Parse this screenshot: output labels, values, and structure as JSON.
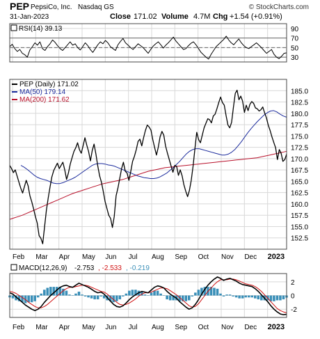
{
  "header": {
    "ticker": "PEP",
    "company": "PepsiCo, Inc.",
    "exchange": "Nasdaq GS",
    "date": "31-Jan-2023",
    "close_label": "Close",
    "close_value": "171.02",
    "volume_label": "Volume",
    "volume_value": "4.7M",
    "chg_label": "Chg",
    "chg_value": "+1.54 (+0.91%)",
    "watermark": "© StockCharts.com"
  },
  "colors": {
    "price": "#000000",
    "ma50": "#1a2a9c",
    "ma200": "#b8102a",
    "macd": "#000000",
    "signal": "#d01010",
    "histogram": "#3a8fb8",
    "grid": "#d8d8d8"
  },
  "chart_data": [
    {
      "type": "line",
      "panel": "rsi",
      "legend": "RSI(14) 39.13",
      "ylim": [
        20,
        100
      ],
      "ticks": [
        30,
        50,
        70,
        90
      ],
      "reference_lines": [
        30,
        50,
        70
      ],
      "series": [
        {
          "name": "RSI(14)",
          "values": [
            52,
            57,
            48,
            42,
            46,
            38,
            35,
            30,
            45,
            52,
            60,
            55,
            62,
            48,
            44,
            52,
            58,
            66,
            61,
            54,
            48,
            44,
            50,
            56,
            62,
            55,
            58,
            50,
            45,
            52,
            60,
            54,
            46,
            40,
            48,
            56,
            62,
            58,
            65,
            60,
            52,
            48,
            44,
            56,
            63,
            69,
            60,
            55,
            50,
            46,
            52,
            58,
            54,
            50,
            44,
            38,
            46,
            53,
            58,
            62,
            56,
            49,
            55,
            60,
            66,
            72,
            64,
            58,
            52,
            46,
            48,
            54,
            59,
            62,
            56,
            48,
            40,
            35,
            30,
            26,
            36,
            44,
            52,
            57,
            62,
            67,
            74,
            66,
            60,
            56,
            62,
            68,
            60,
            54,
            50,
            48,
            52,
            56,
            60,
            55,
            50,
            44,
            38,
            42,
            46,
            36,
            30,
            27,
            32,
            38,
            39
          ]
        }
      ]
    },
    {
      "type": "line",
      "panel": "price",
      "ylim": [
        150,
        187.5
      ],
      "ticks": [
        152.5,
        155.0,
        157.5,
        160.0,
        162.5,
        165.0,
        167.5,
        170.0,
        172.5,
        175.0,
        177.5,
        180.0,
        182.5,
        185.0
      ],
      "x_labels": [
        "Feb",
        "Mar",
        "Apr",
        "May",
        "Jun",
        "Jul",
        "Aug",
        "Sep",
        "Oct",
        "Nov",
        "Dec",
        "2023"
      ],
      "series": [
        {
          "name": "PEP (Daily) 171.02",
          "values": [
            168.5,
            167.8,
            166.9,
            167.5,
            166.2,
            164.8,
            163.5,
            162.4,
            163.8,
            165.2,
            164.0,
            161.8,
            160.5,
            158.9,
            157.2,
            155.8,
            153.0,
            152.4,
            151.2,
            155.0,
            158.6,
            161.4,
            163.8,
            166.0,
            167.4,
            168.2,
            169.0,
            167.8,
            168.5,
            169.2,
            167.5,
            165.4,
            166.8,
            168.8,
            170.2,
            171.6,
            172.4,
            173.5,
            172.0,
            171.2,
            172.8,
            174.6,
            173.0,
            171.6,
            169.5,
            171.8,
            173.2,
            171.0,
            168.4,
            166.2,
            164.8,
            162.8,
            160.5,
            159.0,
            157.5,
            156.8,
            154.8,
            157.2,
            161.8,
            163.5,
            165.6,
            167.8,
            169.2,
            167.2,
            166.8,
            165.2,
            167.2,
            169.4,
            170.5,
            172.0,
            173.8,
            174.3,
            172.8,
            174.6,
            176.2,
            177.4,
            177.0,
            176.3,
            174.2,
            172.5,
            170.8,
            172.5,
            174.8,
            176.0,
            175.2,
            172.8,
            171.2,
            169.8,
            168.4,
            167.0,
            168.5,
            168.3,
            166.3,
            167.5,
            166.2,
            164.2,
            162.8,
            161.6,
            163.0,
            165.2,
            168.4,
            172.2,
            175.8,
            174.2,
            173.5,
            175.2,
            176.8,
            177.8,
            178.8,
            178.6,
            177.9,
            179.4,
            179.8,
            181.0,
            182.4,
            183.6,
            182.4,
            181.8,
            179.5,
            177.4,
            176.8,
            178.0,
            181.4,
            184.4,
            185.1,
            183.0,
            183.8,
            182.7,
            180.2,
            181.8,
            180.6,
            182.0,
            182.6,
            182.2,
            181.2,
            181.0,
            180.5,
            180.8,
            181.4,
            180.1,
            179.0,
            177.4,
            176.2,
            174.8,
            173.6,
            172.4,
            169.8,
            172.0,
            171.2,
            169.4,
            169.8,
            171.0
          ]
        },
        {
          "name": "MA(50) 179.14",
          "values": [
            168.5,
            168.1,
            167.6,
            167.0,
            166.4,
            165.9,
            165.6,
            165.4,
            165.2,
            164.9,
            164.6,
            164.5,
            164.5,
            164.7,
            165.0,
            165.3,
            165.6,
            166.0,
            166.5,
            167.0,
            167.5,
            168.0,
            168.5,
            168.8,
            168.9,
            168.9,
            168.8,
            168.6,
            168.5,
            168.3,
            168.0,
            167.7,
            167.4,
            167.1,
            166.8,
            166.5,
            166.2,
            166.0,
            165.8,
            165.7,
            165.6,
            165.6,
            165.7,
            166.0,
            166.4,
            166.8,
            167.4,
            168.0,
            168.7,
            169.4,
            170.2,
            171.0,
            171.6,
            172.0,
            172.2,
            172.2,
            172.0,
            171.8,
            171.6,
            171.4,
            171.2,
            171.0,
            170.8,
            170.8,
            171.0,
            171.4,
            172.0,
            172.8,
            173.7,
            174.7,
            175.7,
            176.6,
            177.4,
            178.2,
            178.9,
            179.6,
            180.1,
            180.5,
            180.6,
            180.3,
            179.8,
            179.4,
            179.14
          ]
        },
        {
          "name": "MA(200) 171.62",
          "values": [
            156.6,
            156.9,
            157.2,
            157.5,
            157.9,
            158.3,
            158.7,
            159.1,
            159.5,
            159.9,
            160.3,
            160.7,
            161.1,
            161.5,
            161.9,
            162.3,
            162.6,
            162.9,
            163.2,
            163.5,
            163.8,
            164.1,
            164.4,
            164.6,
            164.8,
            165.0,
            165.2,
            165.4,
            165.7,
            166.0,
            166.3,
            166.6,
            166.9,
            167.2,
            167.4,
            167.6,
            167.8,
            168.0,
            168.1,
            168.2,
            168.3,
            168.4,
            168.5,
            168.6,
            168.7,
            168.8,
            168.9,
            169.0,
            169.1,
            169.2,
            169.3,
            169.4,
            169.5,
            169.6,
            169.7,
            169.8,
            169.9,
            170.0,
            170.1,
            170.2,
            170.4,
            170.6,
            170.8,
            171.0,
            171.2,
            171.4,
            171.62
          ]
        }
      ]
    },
    {
      "type": "line",
      "panel": "macd",
      "legend_prefix": "MACD(12,26,9)",
      "legend_macd": "-2.753",
      "legend_signal": "-2.533",
      "legend_hist": "-0.219",
      "ylim": [
        -3.2,
        3.2
      ],
      "ticks": [
        -2,
        0,
        2
      ],
      "x_labels": [
        "Feb",
        "Mar",
        "Apr",
        "May",
        "Jun",
        "Jul",
        "Aug",
        "Sep",
        "Oct",
        "Nov",
        "Dec",
        "2023"
      ],
      "series": [
        {
          "name": "MACD",
          "values": [
            0.4,
            0.2,
            -0.2,
            -0.6,
            -1.0,
            -1.4,
            -1.7,
            -2.0,
            -2.2,
            -2.0,
            -1.6,
            -1.0,
            -0.5,
            0.0,
            0.4,
            0.8,
            1.2,
            1.4,
            1.5,
            1.3,
            1.2,
            1.5,
            1.8,
            1.6,
            1.4,
            1.2,
            0.9,
            0.6,
            0.4,
            0.5,
            0.2,
            -0.3,
            -0.8,
            -1.3,
            -1.6,
            -1.7,
            -1.5,
            -1.1,
            -0.6,
            -0.2,
            0.1,
            0.4,
            0.6,
            0.5,
            0.4,
            0.8,
            1.2,
            1.4,
            1.3,
            1.1,
            0.6,
            0.2,
            -0.1,
            -0.4,
            -0.9,
            -1.3,
            -1.7,
            -2.0,
            -1.8,
            -1.3,
            -0.6,
            0.2,
            0.9,
            1.5,
            2.0,
            2.4,
            2.7,
            2.5,
            2.2,
            2.4,
            2.5,
            2.3,
            2.1,
            1.8,
            1.6,
            1.5,
            1.4,
            1.3,
            1.0,
            0.6,
            0.1,
            -0.4,
            -0.9,
            -1.5,
            -2.0,
            -2.4,
            -2.7,
            -2.8,
            -2.753
          ]
        },
        {
          "name": "Signal",
          "values": [
            0.6,
            0.5,
            0.3,
            0.0,
            -0.3,
            -0.6,
            -1.0,
            -1.3,
            -1.6,
            -1.8,
            -1.8,
            -1.6,
            -1.3,
            -0.9,
            -0.5,
            -0.1,
            0.3,
            0.7,
            1.0,
            1.2,
            1.2,
            1.3,
            1.4,
            1.5,
            1.5,
            1.4,
            1.2,
            1.0,
            0.8,
            0.6,
            0.5,
            0.2,
            -0.2,
            -0.6,
            -1.0,
            -1.3,
            -1.4,
            -1.3,
            -1.1,
            -0.8,
            -0.5,
            -0.1,
            0.2,
            0.4,
            0.4,
            0.5,
            0.7,
            0.9,
            1.1,
            1.1,
            1.0,
            0.7,
            0.4,
            0.1,
            -0.3,
            -0.7,
            -1.1,
            -1.5,
            -1.7,
            -1.6,
            -1.2,
            -0.6,
            0.0,
            0.6,
            1.1,
            1.6,
            2.0,
            2.3,
            2.3,
            2.3,
            2.4,
            2.4,
            2.3,
            2.1,
            1.9,
            1.7,
            1.6,
            1.5,
            1.3,
            1.0,
            0.6,
            0.1,
            -0.4,
            -0.9,
            -1.4,
            -1.9,
            -2.2,
            -2.4,
            -2.533
          ]
        }
      ]
    }
  ]
}
